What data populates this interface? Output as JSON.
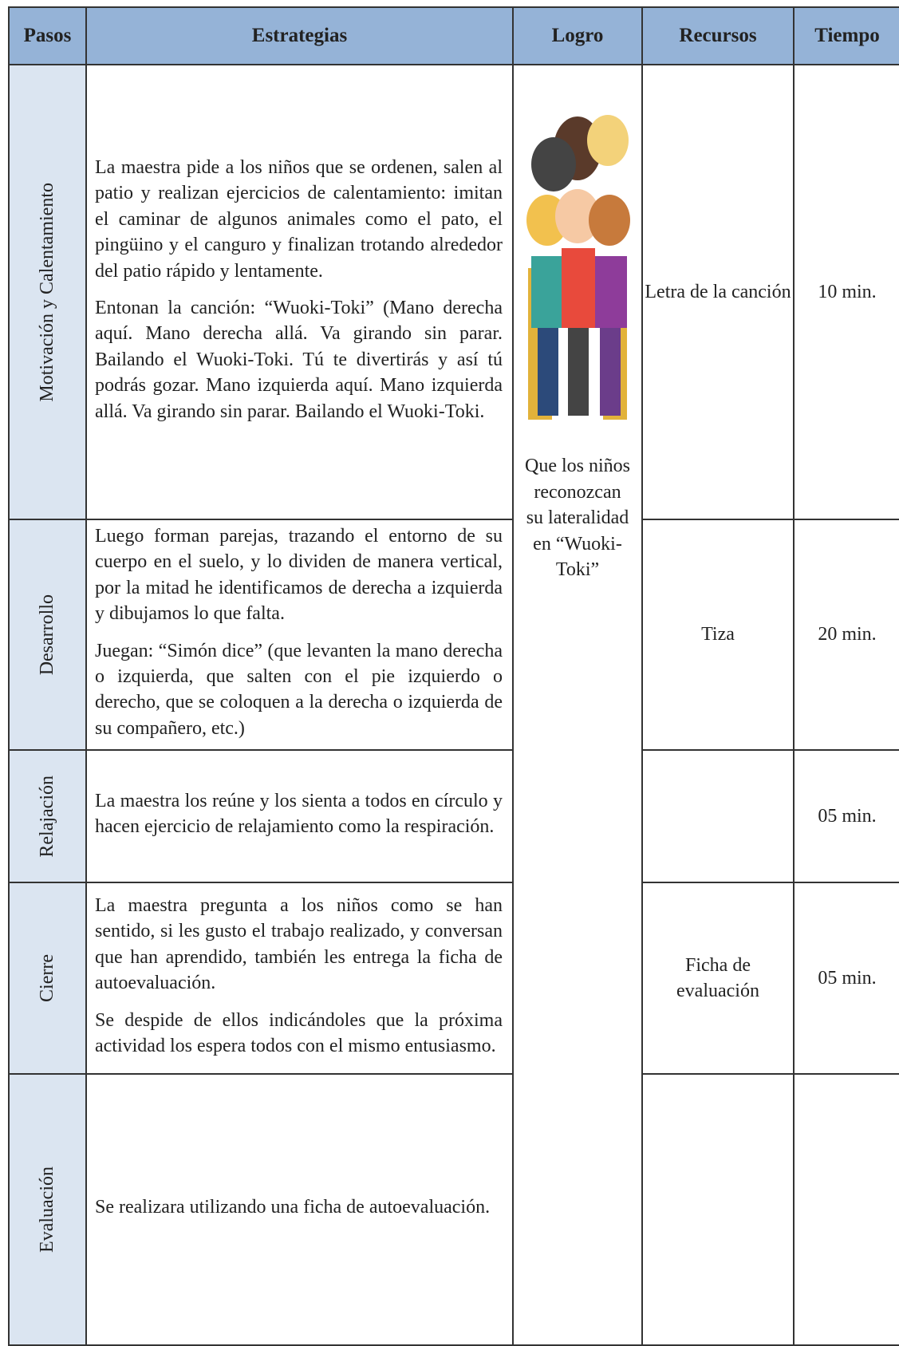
{
  "table": {
    "header": [
      "Pasos",
      "Estrategias",
      "Logro",
      "Recursos",
      "Tiempo"
    ],
    "logro": "Que los niños reconozcan su lateralidad en “Wuoki-Toki”",
    "rows": [
      {
        "paso": "Motivación y Calentamiento",
        "estrategias": [
          "La maestra pide a los niños que se ordenen, salen al patio y realizan ejercicios de calentamiento: imitan el caminar de algunos animales como el pato, el pingüino y el canguro y finalizan trotando alrededor del patio rápido y lentamente.",
          "Entonan la canción: “Wuoki-Toki” (Mano derecha aquí. Mano derecha allá. Va girando sin parar. Bailando el Wuoki-Toki. Tú te divertirás y así tú podrás gozar. Mano izquierda aquí. Mano izquierda allá. Va girando sin parar. Bailando el Wuoki-Toki."
        ],
        "recursos": "Letra de la canción",
        "tiempo": "10 min."
      },
      {
        "paso": "Desarrollo",
        "estrategias": [
          "Luego forman parejas, trazando el entorno de su cuerpo en el suelo, y lo dividen de manera vertical, por la mitad he identificamos de derecha a izquierda y dibujamos lo que falta.",
          "Juegan: “Simón dice” (que levanten la mano derecha o izquierda, que salten con el pie izquierdo o derecho, que se coloquen a la derecha o izquierda de su compañero, etc.)"
        ],
        "recursos": "Tiza",
        "tiempo": "20 min."
      },
      {
        "paso": "Relajación",
        "estrategias": [
          "La maestra los reúne y los sienta a todos en círculo y hacen ejercicio de relajamiento como la respiración."
        ],
        "tiempo": "05 min."
      },
      {
        "paso": "Cierre",
        "estrategias": [
          "La maestra pregunta a los niños como se han sentido, si les gusto el trabajo realizado, y conversan que han aprendido, también les entrega la ficha de autoevaluación.",
          "Se despide de ellos indicándoles que la próxima actividad los espera todos con el mismo entusiasmo."
        ],
        "recursos": "Ficha de evaluación",
        "tiempo": "05 min."
      },
      {
        "paso": "Evaluación",
        "estrategias": [
          "Se realizara utilizando una ficha de autoevaluación."
        ]
      }
    ]
  }
}
